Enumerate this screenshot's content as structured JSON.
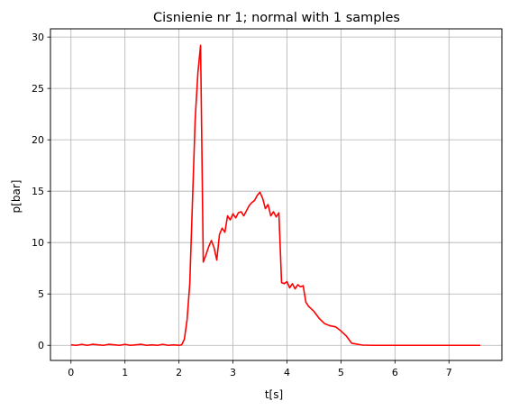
{
  "chart_data": {
    "type": "line",
    "title": "Cisnienie nr 1; normal with 1 samples",
    "xlabel": "t[s]",
    "ylabel": "p[bar]",
    "xlim": [
      -0.38,
      7.98
    ],
    "ylim": [
      -1.47,
      30.8
    ],
    "xticks": [
      0,
      1,
      2,
      3,
      4,
      5,
      6,
      7
    ],
    "yticks": [
      0,
      5,
      10,
      15,
      20,
      25,
      30
    ],
    "grid": true,
    "series": [
      {
        "color": "#ff0000",
        "x": [
          0.0,
          0.1,
          0.2,
          0.3,
          0.4,
          0.5,
          0.6,
          0.7,
          0.8,
          0.9,
          1.0,
          1.1,
          1.2,
          1.3,
          1.4,
          1.5,
          1.6,
          1.7,
          1.8,
          1.9,
          2.0,
          2.05,
          2.1,
          2.15,
          2.2,
          2.25,
          2.3,
          2.35,
          2.4,
          2.45,
          2.5,
          2.55,
          2.6,
          2.65,
          2.7,
          2.75,
          2.8,
          2.85,
          2.9,
          2.95,
          3.0,
          3.05,
          3.1,
          3.15,
          3.2,
          3.25,
          3.3,
          3.35,
          3.4,
          3.45,
          3.5,
          3.55,
          3.6,
          3.65,
          3.7,
          3.75,
          3.8,
          3.85,
          3.9,
          3.95,
          4.0,
          4.05,
          4.1,
          4.15,
          4.2,
          4.25,
          4.3,
          4.35,
          4.4,
          4.5,
          4.6,
          4.7,
          4.8,
          4.9,
          5.0,
          5.1,
          5.2,
          5.4,
          5.6,
          5.8,
          6.0,
          6.5,
          7.0,
          7.58
        ],
        "y": [
          0.05,
          0.0,
          0.1,
          0.0,
          0.1,
          0.05,
          0.0,
          0.1,
          0.05,
          0.0,
          0.1,
          0.0,
          0.05,
          0.1,
          0.0,
          0.05,
          0.0,
          0.1,
          0.0,
          0.05,
          0.0,
          0.05,
          0.6,
          2.5,
          6.0,
          14.0,
          22.0,
          26.5,
          29.2,
          8.1,
          8.8,
          9.6,
          10.2,
          9.5,
          8.3,
          10.8,
          11.4,
          11.0,
          12.6,
          12.2,
          12.8,
          12.4,
          12.9,
          13.0,
          12.6,
          13.1,
          13.6,
          13.9,
          14.1,
          14.6,
          14.9,
          14.3,
          13.3,
          13.7,
          12.6,
          13.0,
          12.5,
          12.9,
          6.1,
          6.0,
          6.2,
          5.6,
          6.0,
          5.5,
          5.9,
          5.7,
          5.8,
          4.2,
          3.8,
          3.3,
          2.6,
          2.1,
          1.9,
          1.8,
          1.4,
          0.9,
          0.2,
          0.02,
          0.0,
          0.0,
          0.0,
          0.0,
          0.0,
          0.0
        ]
      }
    ]
  }
}
